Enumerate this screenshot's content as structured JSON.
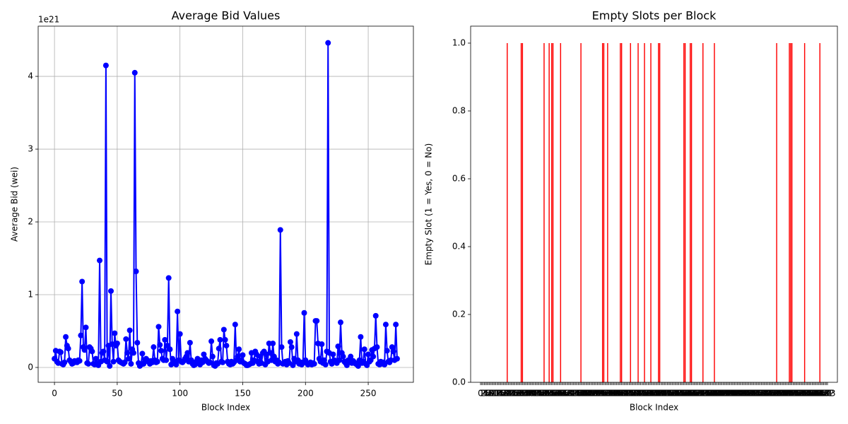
{
  "chart_data": [
    {
      "type": "line",
      "title": "Average Bid Values",
      "x_label": "Block Index",
      "y_label": "Average Bid (wei)",
      "y_offset_label": "1e21",
      "color": "#0000ff",
      "grid": true,
      "xlim": [
        -13,
        286
      ],
      "ylim": [
        -0.204,
        4.69
      ],
      "xticks": [
        0,
        50,
        100,
        150,
        200,
        250
      ],
      "yticks": [
        0,
        1,
        2,
        3,
        4
      ],
      "x": [
        0,
        1,
        2,
        3,
        4,
        5,
        6,
        7,
        8,
        9,
        10,
        11,
        12,
        13,
        14,
        15,
        16,
        17,
        18,
        19,
        20,
        21,
        22,
        23,
        24,
        25,
        26,
        27,
        28,
        29,
        30,
        31,
        32,
        33,
        34,
        35,
        36,
        37,
        38,
        39,
        40,
        41,
        42,
        43,
        44,
        45,
        46,
        47,
        48,
        49,
        50,
        51,
        52,
        53,
        54,
        55,
        56,
        57,
        58,
        59,
        60,
        61,
        62,
        63,
        64,
        65,
        66,
        67,
        68,
        69,
        70,
        71,
        72,
        73,
        74,
        75,
        76,
        77,
        78,
        79,
        80,
        81,
        82,
        83,
        84,
        85,
        86,
        87,
        88,
        89,
        90,
        91,
        92,
        93,
        94,
        95,
        96,
        97,
        98,
        99,
        100,
        101,
        102,
        103,
        104,
        105,
        106,
        107,
        108,
        109,
        110,
        111,
        112,
        113,
        114,
        115,
        116,
        117,
        118,
        119,
        120,
        121,
        122,
        123,
        124,
        125,
        126,
        127,
        128,
        129,
        130,
        131,
        132,
        133,
        134,
        135,
        136,
        137,
        138,
        139,
        140,
        141,
        142,
        143,
        144,
        145,
        146,
        147,
        148,
        149,
        150,
        151,
        152,
        153,
        154,
        155,
        156,
        157,
        158,
        159,
        160,
        161,
        162,
        163,
        164,
        165,
        166,
        167,
        168,
        169,
        170,
        171,
        172,
        173,
        174,
        175,
        176,
        177,
        178,
        179,
        180,
        181,
        182,
        183,
        184,
        185,
        186,
        187,
        188,
        189,
        190,
        191,
        192,
        193,
        194,
        195,
        196,
        197,
        198,
        199,
        200,
        201,
        202,
        203,
        204,
        205,
        206,
        207,
        208,
        209,
        210,
        211,
        212,
        213,
        214,
        215,
        216,
        217,
        218,
        219,
        220,
        221,
        222,
        223,
        224,
        225,
        226,
        227,
        228,
        229,
        230,
        231,
        232,
        233,
        234,
        235,
        236,
        237,
        238,
        239,
        240,
        241,
        242,
        243,
        244,
        245,
        246,
        247,
        248,
        249,
        250,
        251,
        252,
        253,
        254,
        255,
        256,
        257,
        258,
        259,
        260,
        261,
        262,
        263,
        264,
        265,
        266,
        267,
        268,
        269,
        270,
        271,
        272,
        273
      ],
      "series": [
        {
          "name": "Average Bid",
          "color": "#0000ff",
          "values": [
            0.12,
            0.23,
            0.08,
            0.06,
            0.22,
            0.21,
            0.05,
            0.04,
            0.07,
            0.42,
            0.3,
            0.26,
            0.1,
            0.08,
            0.05,
            0.06,
            0.09,
            0.08,
            0.07,
            0.1,
            0.09,
            0.44,
            1.18,
            0.28,
            0.24,
            0.55,
            0.06,
            0.05,
            0.28,
            0.26,
            0.22,
            0.05,
            0.04,
            0.12,
            0.05,
            0.03,
            1.47,
            0.08,
            0.2,
            0.22,
            0.1,
            4.15,
            0.08,
            0.3,
            0.02,
            1.05,
            0.32,
            0.08,
            0.47,
            0.3,
            0.33,
            0.1,
            0.08,
            0.07,
            0.06,
            0.05,
            0.07,
            0.39,
            0.2,
            0.12,
            0.51,
            0.05,
            0.25,
            0.2,
            4.05,
            1.32,
            0.34,
            0.06,
            0.02,
            0.04,
            0.19,
            0.05,
            0.08,
            0.12,
            0.1,
            0.08,
            0.05,
            0.09,
            0.07,
            0.28,
            0.1,
            0.07,
            0.08,
            0.56,
            0.31,
            0.23,
            0.12,
            0.1,
            0.38,
            0.1,
            0.3,
            1.23,
            0.25,
            0.04,
            0.12,
            0.06,
            0.08,
            0.04,
            0.77,
            0.1,
            0.46,
            0.08,
            0.07,
            0.09,
            0.12,
            0.15,
            0.2,
            0.08,
            0.34,
            0.1,
            0.05,
            0.03,
            0.04,
            0.08,
            0.12,
            0.06,
            0.04,
            0.1,
            0.07,
            0.18,
            0.12,
            0.1,
            0.08,
            0.06,
            0.07,
            0.36,
            0.15,
            0.03,
            0.02,
            0.06,
            0.05,
            0.26,
            0.38,
            0.08,
            0.07,
            0.52,
            0.38,
            0.3,
            0.08,
            0.05,
            0.04,
            0.08,
            0.05,
            0.07,
            0.59,
            0.1,
            0.15,
            0.25,
            0.08,
            0.1,
            0.17,
            0.06,
            0.05,
            0.03,
            0.03,
            0.04,
            0.05,
            0.2,
            0.06,
            0.1,
            0.22,
            0.18,
            0.08,
            0.05,
            0.15,
            0.06,
            0.2,
            0.22,
            0.04,
            0.18,
            0.08,
            0.33,
            0.2,
            0.1,
            0.33,
            0.15,
            0.08,
            0.1,
            0.05,
            0.07,
            1.89,
            0.28,
            0.05,
            0.06,
            0.08,
            0.04,
            0.09,
            0.06,
            0.35,
            0.28,
            0.03,
            0.12,
            0.08,
            0.46,
            0.1,
            0.05,
            0.07,
            0.04,
            0.07,
            0.75,
            0.1,
            0.06,
            0.04,
            0.05,
            0.07,
            0.04,
            0.06,
            0.05,
            0.64,
            0.64,
            0.33,
            0.12,
            0.08,
            0.32,
            0.06,
            0.1,
            0.04,
            0.22,
            4.46,
            0.2,
            0.08,
            0.05,
            0.18,
            0.1,
            0.08,
            0.06,
            0.29,
            0.1,
            0.62,
            0.2,
            0.15,
            0.08,
            0.06,
            0.03,
            0.1,
            0.08,
            0.15,
            0.06,
            0.09,
            0.07,
            0.05,
            0.04,
            0.02,
            0.1,
            0.42,
            0.06,
            0.08,
            0.25,
            0.05,
            0.03,
            0.18,
            0.08,
            0.1,
            0.24,
            0.15,
            0.26,
            0.71,
            0.28,
            0.05,
            0.04,
            0.08,
            0.05,
            0.07,
            0.04,
            0.59,
            0.23,
            0.08,
            0.07,
            0.1,
            0.28,
            0.22,
            0.1,
            0.59,
            0.12
          ]
        }
      ]
    },
    {
      "type": "bar",
      "title": "Empty Slots per Block",
      "x_label": "Block Index",
      "y_label": "Empty Slot (1 = Yes, 0 = No)",
      "color": "#ff0000",
      "grid": false,
      "ylim": [
        0,
        1.05
      ],
      "yticks": [
        {
          "value": 0,
          "label": "0.0"
        },
        {
          "value": 0.2,
          "label": "0.2"
        },
        {
          "value": 0.4,
          "label": "0.4"
        },
        {
          "value": 0.6,
          "label": "0.6"
        },
        {
          "value": 0.8,
          "label": "0.8"
        },
        {
          "value": 1,
          "label": "1.0"
        }
      ],
      "categories": [
        0,
        1,
        2,
        3,
        4,
        5,
        6,
        7,
        8,
        9,
        10,
        11,
        12,
        13,
        14,
        15,
        16,
        17,
        18,
        19,
        20,
        21,
        22,
        23,
        24,
        25,
        26,
        27,
        28,
        29,
        30,
        31,
        32,
        33,
        34,
        35,
        36,
        37,
        38,
        39,
        40,
        41,
        42,
        43,
        44,
        45,
        46,
        47,
        48,
        49,
        50,
        51,
        52,
        53,
        54,
        55,
        56,
        57,
        58,
        59,
        60,
        61,
        62,
        63,
        64,
        65,
        66,
        67,
        68,
        69,
        70,
        71,
        72,
        73,
        74,
        75,
        76,
        77,
        78,
        79,
        80,
        81,
        82,
        83,
        84,
        85,
        86,
        87,
        88,
        89,
        90,
        91,
        92,
        93,
        94,
        95,
        96,
        97,
        98,
        99,
        100,
        101,
        102,
        103,
        104,
        105,
        106,
        107,
        108,
        109,
        110,
        111,
        112,
        113,
        114,
        115,
        116,
        117,
        118,
        119,
        120,
        121,
        122,
        123,
        124,
        125,
        126,
        127,
        128,
        129,
        130,
        131,
        132,
        133,
        134,
        135,
        136,
        137,
        138,
        139,
        140,
        141,
        142,
        143,
        144,
        145,
        146,
        147,
        148,
        149,
        150,
        151,
        152,
        153,
        154,
        155,
        156,
        157,
        158,
        159,
        160,
        161,
        162,
        163,
        164,
        165,
        166,
        167,
        168,
        169,
        170,
        171,
        172,
        173,
        174,
        175,
        176,
        177,
        178,
        179,
        180,
        181,
        182,
        183,
        184,
        185,
        186,
        187,
        188,
        189,
        190,
        191,
        192,
        193,
        194,
        195,
        196,
        197,
        198,
        199,
        200,
        201,
        202,
        203,
        204,
        205,
        206,
        207,
        208,
        209,
        210,
        211,
        212,
        213,
        214,
        215,
        216,
        217,
        218,
        219,
        220,
        221,
        222,
        223,
        224,
        225,
        226,
        227,
        228,
        229,
        230,
        231,
        232,
        233,
        234,
        235,
        236,
        237,
        238,
        239,
        240,
        241,
        242,
        243,
        244,
        245,
        246,
        247,
        248,
        249,
        250,
        251,
        252,
        253,
        254,
        255,
        256,
        257,
        258,
        259,
        260,
        261,
        262,
        263,
        264,
        265,
        266,
        267,
        268,
        269,
        270,
        271,
        272,
        273
      ],
      "values": [
        0,
        0,
        0,
        0,
        0,
        0,
        0,
        0,
        0,
        0,
        0,
        0,
        0,
        0,
        0,
        0,
        0,
        0,
        0,
        0,
        0,
        1,
        0,
        0,
        0,
        0,
        0,
        0,
        0,
        0,
        0,
        0,
        1,
        1,
        0,
        0,
        0,
        0,
        0,
        0,
        0,
        0,
        0,
        0,
        0,
        0,
        0,
        0,
        0,
        0,
        1,
        0,
        0,
        0,
        1,
        0,
        1,
        1,
        0,
        0,
        0,
        0,
        0,
        1,
        0,
        0,
        0,
        0,
        0,
        0,
        0,
        0,
        0,
        0,
        0,
        0,
        0,
        0,
        0,
        1,
        0,
        0,
        0,
        0,
        0,
        0,
        0,
        0,
        0,
        0,
        0,
        0,
        0,
        0,
        0,
        0,
        1,
        1,
        0,
        0,
        1,
        0,
        0,
        0,
        0,
        0,
        0,
        0,
        0,
        0,
        1,
        1,
        0,
        0,
        0,
        0,
        0,
        0,
        1,
        0,
        0,
        0,
        0,
        0,
        1,
        0,
        0,
        0,
        0,
        1,
        0,
        0,
        0,
        0,
        1,
        0,
        0,
        0,
        0,
        0,
        1,
        1,
        0,
        0,
        0,
        0,
        0,
        0,
        0,
        0,
        0,
        0,
        0,
        0,
        0,
        0,
        0,
        0,
        0,
        0,
        1,
        1,
        0,
        0,
        0,
        1,
        1,
        0,
        0,
        0,
        0,
        0,
        0,
        0,
        0,
        1,
        0,
        0,
        0,
        0,
        0,
        0,
        0,
        0,
        1,
        0,
        0,
        0,
        0,
        0,
        0,
        0,
        0,
        0,
        0,
        0,
        0,
        0,
        0,
        0,
        0,
        0,
        0,
        0,
        0,
        0,
        0,
        0,
        0,
        0,
        0,
        0,
        0,
        0,
        0,
        0,
        0,
        0,
        0,
        0,
        0,
        0,
        0,
        0,
        0,
        0,
        0,
        0,
        0,
        0,
        0,
        0,
        0,
        1,
        0,
        0,
        0,
        0,
        0,
        0,
        0,
        0,
        0,
        1,
        1,
        1,
        0,
        0,
        0,
        0,
        0,
        0,
        0,
        0,
        0,
        1,
        0,
        0,
        0,
        0,
        0,
        0,
        0,
        0,
        0,
        0,
        0,
        1,
        0,
        0,
        0,
        0,
        0,
        0
      ]
    }
  ]
}
